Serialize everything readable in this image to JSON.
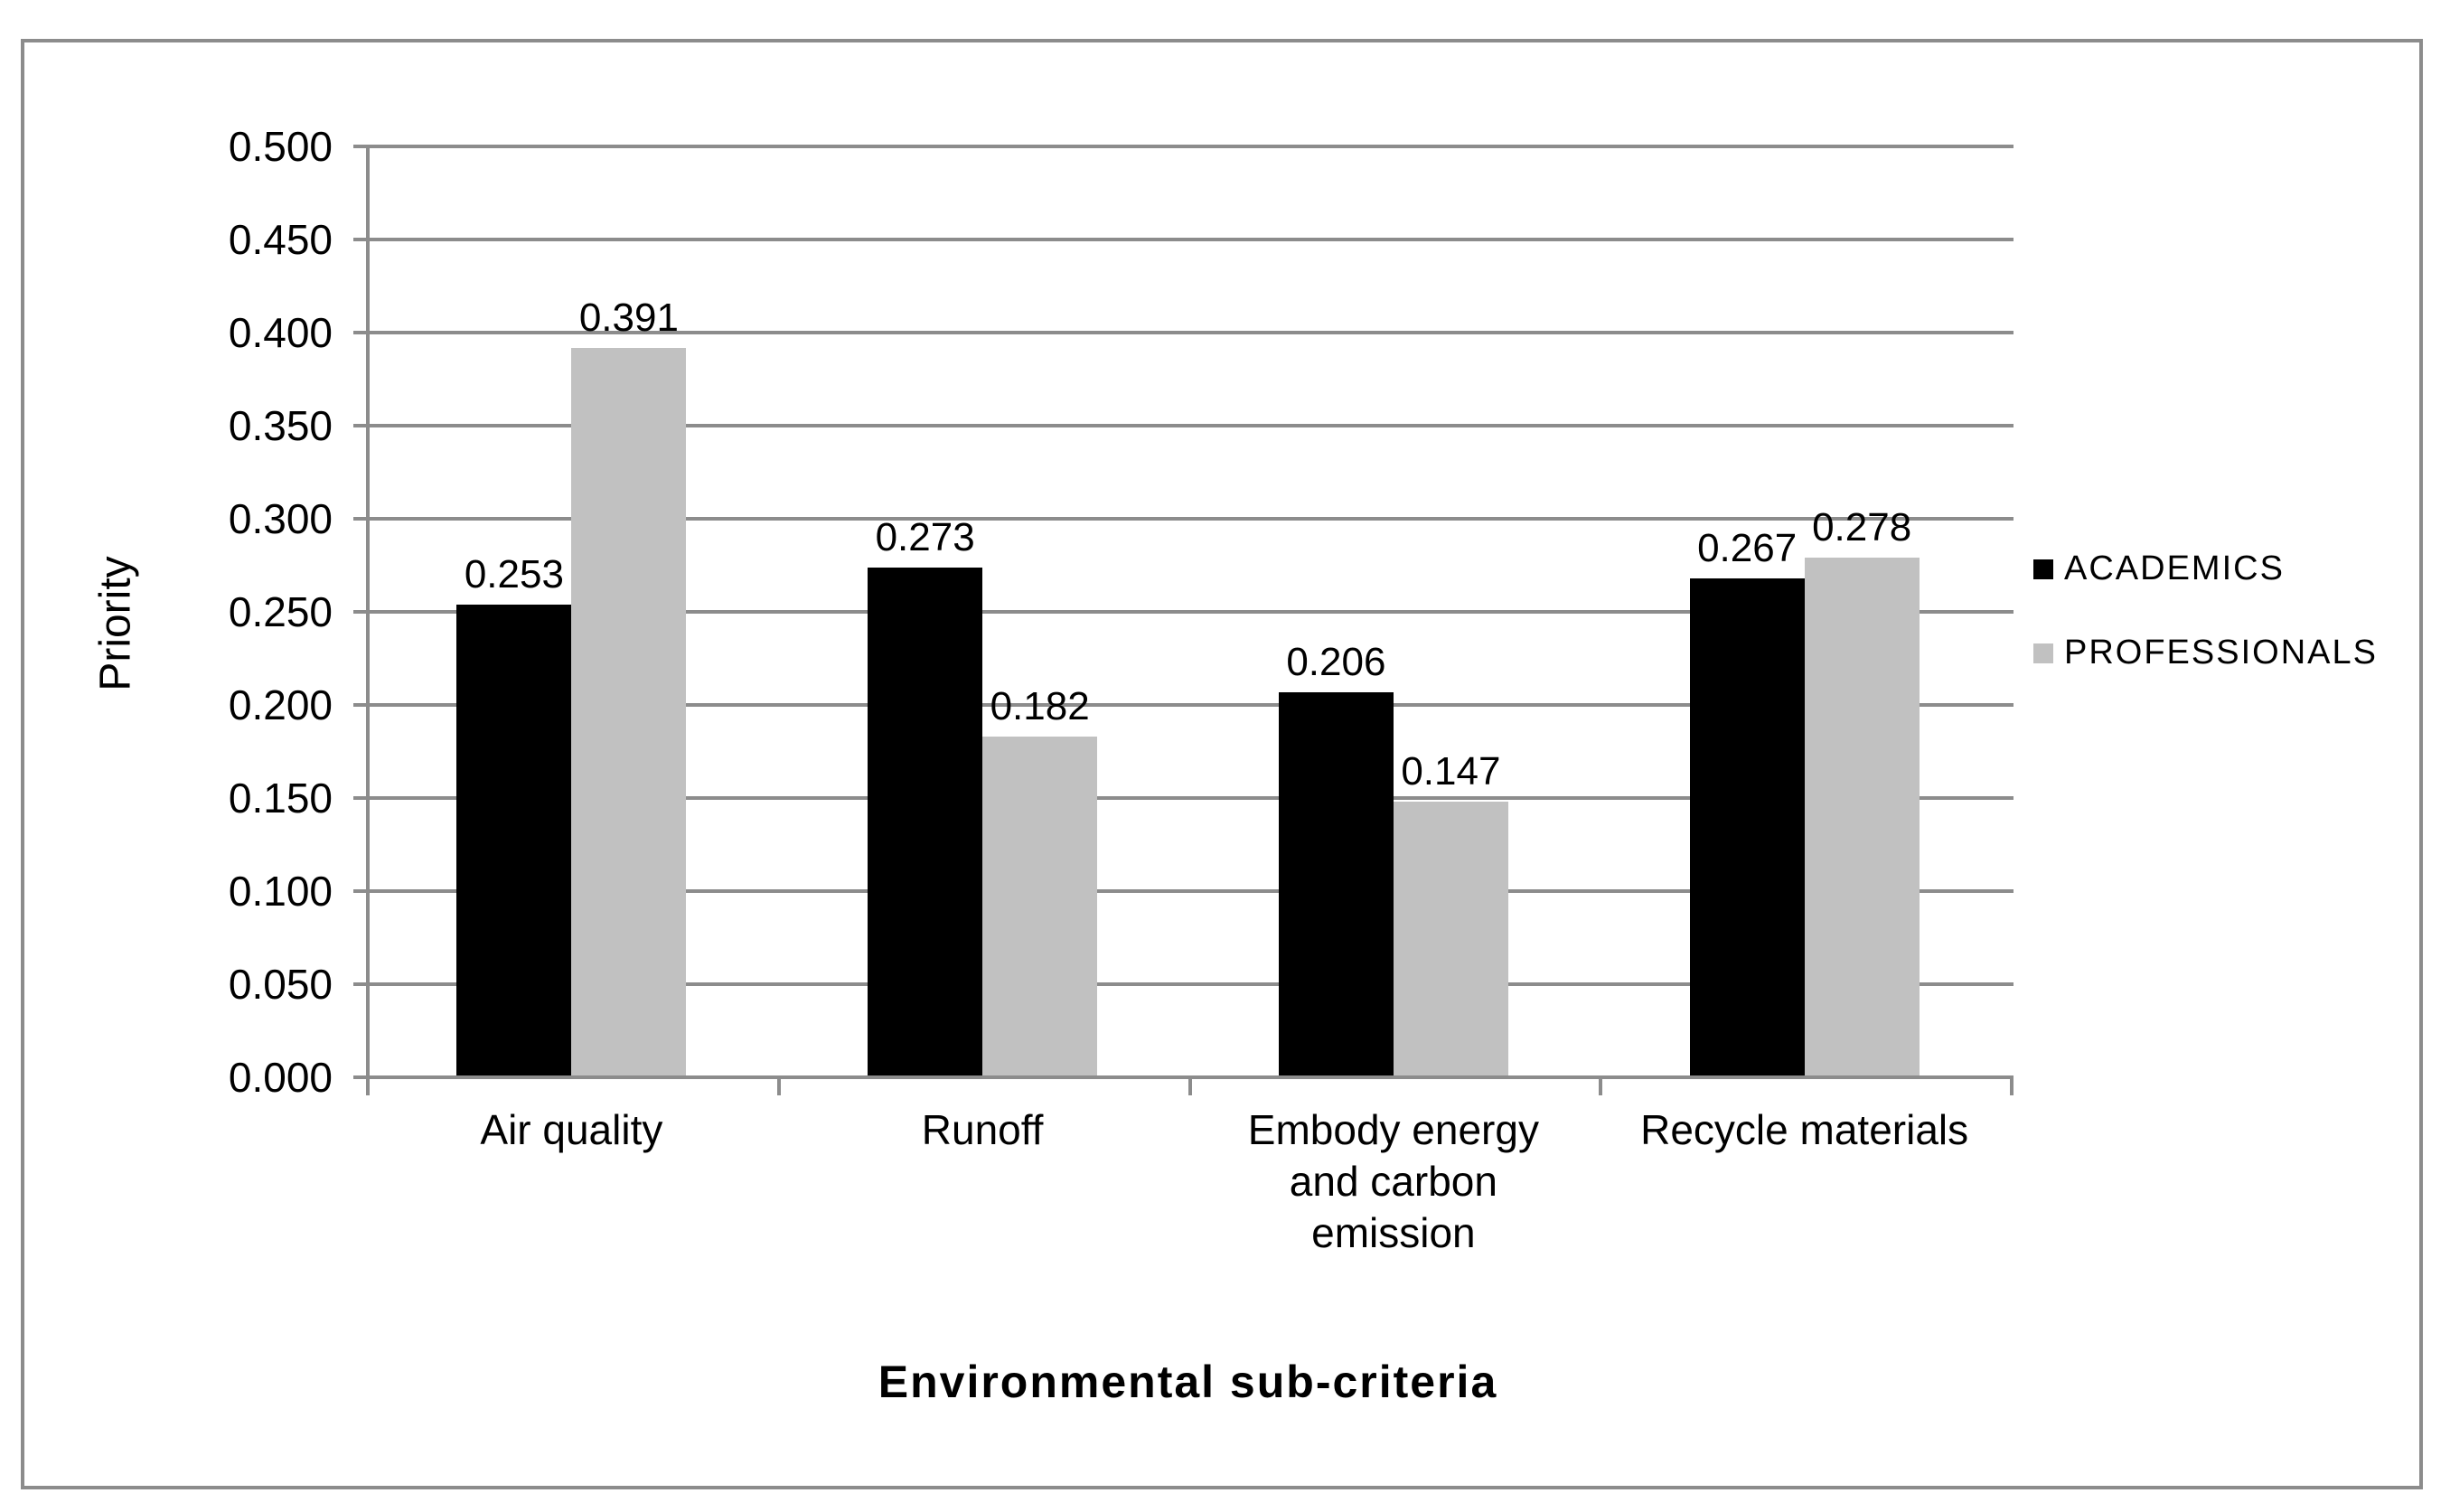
{
  "chart_data": {
    "type": "bar",
    "title": "",
    "xlabel": "Environmental sub-criteria",
    "ylabel": "Priority",
    "categories": [
      "Air quality",
      "Runoff",
      "Embody energy and carbon emission",
      "Recycle materials"
    ],
    "series": [
      {
        "name": "ACADEMICS",
        "color": "#000000",
        "values": [
          0.253,
          0.273,
          0.206,
          0.267
        ]
      },
      {
        "name": "PROFESSIONALS",
        "color": "#C1C1C1",
        "values": [
          0.391,
          0.182,
          0.147,
          0.278
        ]
      }
    ],
    "value_labels": [
      "0.253",
      "0.391",
      "0.273",
      "0.182",
      "0.206",
      "0.147",
      "0.267",
      "0.278"
    ],
    "ylim": [
      0,
      0.5
    ],
    "ytick_step": 0.05,
    "yticks": [
      "0.000",
      "0.050",
      "0.100",
      "0.150",
      "0.200",
      "0.250",
      "0.300",
      "0.350",
      "0.400",
      "0.450",
      "0.500"
    ],
    "grid": true,
    "legend_position": "right",
    "axis_color": "#8C8C8C",
    "gridline_color": "#8C8C8C"
  }
}
